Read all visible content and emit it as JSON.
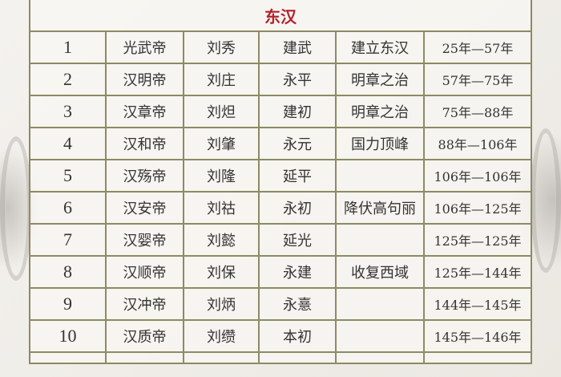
{
  "title": "东汉",
  "rows": [
    {
      "no": "1",
      "title": "光武帝",
      "name": "刘秀",
      "era": "建武",
      "event": "建立东汉",
      "reign": "25年—57年"
    },
    {
      "no": "2",
      "title": "汉明帝",
      "name": "刘庄",
      "era": "永平",
      "event": "明章之治",
      "reign": "57年—75年"
    },
    {
      "no": "3",
      "title": "汉章帝",
      "name": "刘炟",
      "era": "建初",
      "event": "明章之治",
      "reign": "75年—88年"
    },
    {
      "no": "4",
      "title": "汉和帝",
      "name": "刘肇",
      "era": "永元",
      "event": "国力顶峰",
      "reign": "88年—106年"
    },
    {
      "no": "5",
      "title": "汉殇帝",
      "name": "刘隆",
      "era": "延平",
      "event": "",
      "reign": "106年—106年"
    },
    {
      "no": "6",
      "title": "汉安帝",
      "name": "刘祜",
      "era": "永初",
      "event": "降伏高句丽",
      "reign": "106年—125年"
    },
    {
      "no": "7",
      "title": "汉婴帝",
      "name": "刘懿",
      "era": "延光",
      "event": "",
      "reign": "125年—125年"
    },
    {
      "no": "8",
      "title": "汉顺帝",
      "name": "刘保",
      "era": "永建",
      "event": "收复西域",
      "reign": "125年—144年"
    },
    {
      "no": "9",
      "title": "汉冲帝",
      "name": "刘炳",
      "era": "永憙",
      "event": "",
      "reign": "144年—145年"
    },
    {
      "no": "10",
      "title": "汉质帝",
      "name": "刘缵",
      "era": "本初",
      "event": "",
      "reign": "145年—146年"
    }
  ]
}
